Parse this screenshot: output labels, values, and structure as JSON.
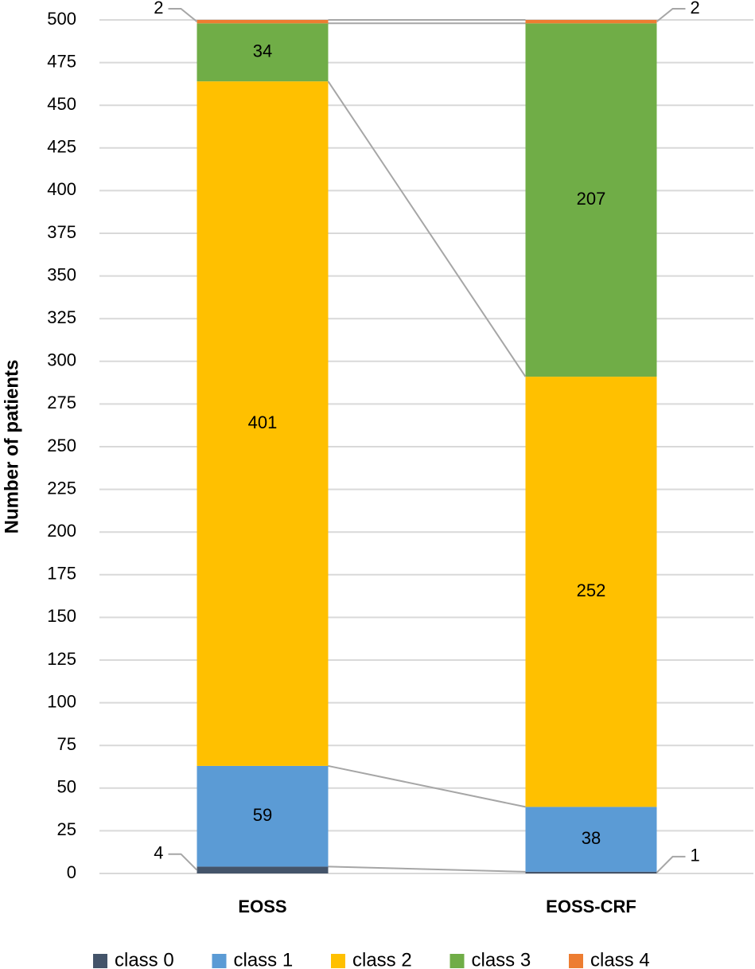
{
  "chart_data": {
    "type": "stacked-bar",
    "y_label": "Number of patients",
    "categories": [
      "EOSS",
      "EOSS-CRF"
    ],
    "series": [
      {
        "name": "class 0",
        "color": "#44546a",
        "values": [
          4,
          1
        ]
      },
      {
        "name": "class 1",
        "color": "#5b9bd5",
        "values": [
          59,
          38
        ]
      },
      {
        "name": "class 2",
        "color": "#ffc000",
        "values": [
          401,
          252
        ]
      },
      {
        "name": "class 3",
        "color": "#70ad47",
        "values": [
          34,
          207
        ]
      },
      {
        "name": "class 4",
        "color": "#ed7d31",
        "values": [
          2,
          2
        ]
      }
    ],
    "ylim": [
      0,
      500
    ],
    "yticks": [
      0,
      25,
      50,
      75,
      100,
      125,
      150,
      175,
      200,
      225,
      250,
      275,
      300,
      325,
      350,
      375,
      400,
      425,
      450,
      475,
      500
    ],
    "grid": true,
    "legend": "bottom"
  }
}
